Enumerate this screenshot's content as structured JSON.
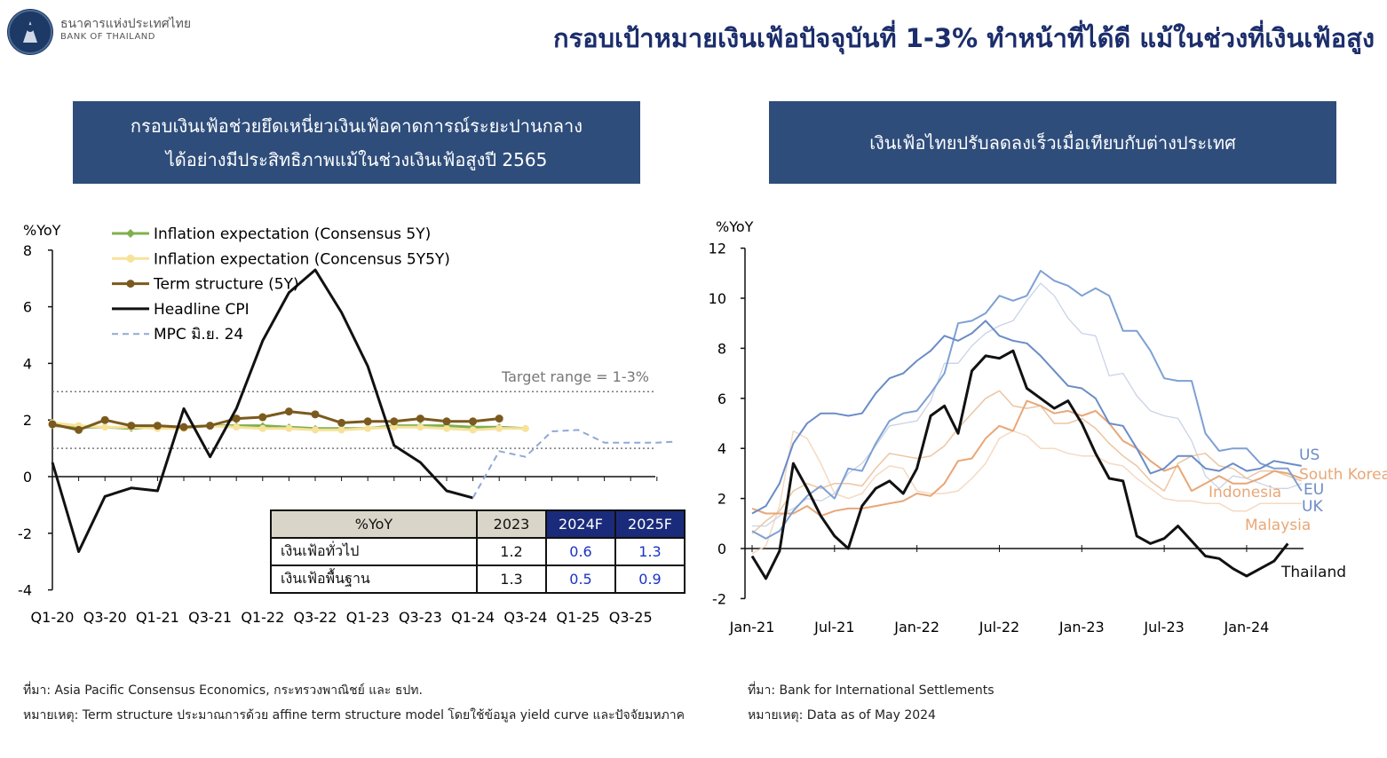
{
  "header": {
    "logo_thai": "ธนาคารแห่งประเทศไทย",
    "logo_en": "BANK OF THAILAND",
    "title": "กรอบเป้าหมายเงินเฟ้อปัจจุบันที่ 1-3% ทำหน้าที่ได้ดี แม้ในช่วงที่เงินเฟ้อสูง"
  },
  "left_panel": {
    "banner_line1": "กรอบเงินเฟ้อช่วยยึดเหนี่ยวเงินเฟ้อคาดการณ์ระยะปานกลาง",
    "banner_line2": "ได้อย่างมีประสิทธิภาพแม้ในช่วงเงินเฟ้อสูงปี 2565",
    "source": "ที่มา: Asia Pacific Consensus Economics, กระทรวงพาณิชย์ และ ธปท.",
    "remark": "หมายเหตุ: Term structure ประมาณการด้วย affine term structure model โดยใช้ข้อมูล yield curve และปัจจัยมหภาค",
    "table": {
      "header": [
        "%YoY",
        "2023",
        "2024F",
        "2025F"
      ],
      "rows": [
        [
          "เงินเฟ้อทั่วไป",
          "1.2",
          "0.6",
          "1.3"
        ],
        [
          "เงินเฟ้อพื้นฐาน",
          "1.3",
          "0.5",
          "0.9"
        ]
      ]
    }
  },
  "right_panel": {
    "banner": "เงินเฟ้อไทยปรับลดลงเร็วเมื่อเทียบกับต่างประเทศ",
    "source": "ที่มา: Bank for International Settlements",
    "remark": "หมายเหตุ: Data as of May 2024"
  },
  "chart_data": [
    {
      "type": "line",
      "ylabel": "%YoY",
      "ylim": [
        -4,
        8
      ],
      "yticks": [
        -4,
        -2,
        0,
        2,
        4,
        6,
        8
      ],
      "x_tick_labels": [
        "Q1-20",
        "Q3-20",
        "Q1-21",
        "Q3-21",
        "Q1-22",
        "Q3-22",
        "Q1-23",
        "Q3-23",
        "Q1-24",
        "Q3-24",
        "Q1-25",
        "Q3-25"
      ],
      "target_range": [
        1,
        3
      ],
      "target_label": "Target range = 1-3%",
      "legend_position": "top-left",
      "series": [
        {
          "name": "Inflation expectation (Consensus 5Y)",
          "color": "#7fb04f",
          "start": 0,
          "values": [
            1.8,
            1.75,
            1.75,
            1.7,
            1.75,
            1.75,
            1.8,
            1.8,
            1.8,
            1.75,
            1.7,
            1.7,
            1.7,
            1.8,
            1.8,
            1.8,
            1.75,
            1.75,
            1.7
          ]
        },
        {
          "name": "Inflation expectation (Concensus 5Y5Y)",
          "color": "#f7e29a",
          "start": 0,
          "values": [
            1.9,
            1.8,
            1.75,
            1.75,
            1.7,
            1.7,
            1.8,
            1.75,
            1.7,
            1.7,
            1.65,
            1.65,
            1.7,
            1.75,
            1.75,
            1.7,
            1.65,
            1.7,
            1.7
          ]
        },
        {
          "name": "Term structure (5Y)",
          "color": "#7a5a1e",
          "start": 0,
          "values": [
            1.85,
            1.65,
            2.0,
            1.8,
            1.8,
            1.75,
            1.8,
            2.05,
            2.1,
            2.3,
            2.2,
            1.9,
            1.95,
            1.95,
            2.05,
            1.95,
            1.95,
            2.05
          ]
        },
        {
          "name": "Headline CPI",
          "color": "#111111",
          "start": 0,
          "values": [
            0.5,
            -2.65,
            -0.7,
            -0.4,
            -0.5,
            2.4,
            0.7,
            2.4,
            4.8,
            6.5,
            7.3,
            5.8,
            3.9,
            1.1,
            0.5,
            -0.5,
            -0.75
          ]
        },
        {
          "name": "MPC มิ.ย. 24",
          "color": "#8fa9d6",
          "dashed": true,
          "start": 16,
          "values": [
            -0.75,
            0.9,
            0.7,
            1.6,
            1.65,
            1.2,
            1.2,
            1.2,
            1.25
          ]
        }
      ]
    },
    {
      "type": "line",
      "ylabel": "%YoY",
      "ylim": [
        -2,
        12
      ],
      "yticks": [
        -2,
        0,
        2,
        4,
        6,
        8,
        10,
        12
      ],
      "x_tick_labels": [
        "Jan-21",
        "Jul-21",
        "Jan-22",
        "Jul-22",
        "Jan-23",
        "Jul-23",
        "Jan-24"
      ],
      "months": 41,
      "series": [
        {
          "name": "US",
          "color": "#6a8cc7",
          "width": 2,
          "values": [
            1.4,
            1.7,
            2.6,
            4.2,
            5.0,
            5.4,
            5.4,
            5.3,
            5.4,
            6.2,
            6.8,
            7.0,
            7.5,
            7.9,
            8.5,
            8.3,
            8.6,
            9.1,
            8.5,
            8.3,
            8.2,
            7.7,
            7.1,
            6.5,
            6.4,
            6.0,
            5.0,
            4.9,
            4.0,
            3.0,
            3.2,
            3.7,
            3.7,
            3.2,
            3.1,
            3.4,
            3.1,
            3.2,
            3.5,
            3.4,
            3.3
          ]
        },
        {
          "name": "EU",
          "color": "#c9d3e6",
          "width": 1.3,
          "values": [
            0.9,
            0.9,
            1.3,
            1.6,
            2.0,
            1.9,
            2.2,
            3.0,
            3.4,
            4.1,
            4.9,
            5.0,
            5.1,
            5.9,
            7.4,
            7.4,
            8.1,
            8.6,
            8.9,
            9.1,
            9.9,
            10.6,
            10.1,
            9.2,
            8.6,
            8.5,
            6.9,
            7.0,
            6.1,
            5.5,
            5.3,
            5.2,
            4.3,
            2.9,
            2.4,
            2.9,
            2.8,
            2.6,
            2.4,
            2.4,
            2.6
          ]
        },
        {
          "name": "UK",
          "color": "#7ea0d3",
          "width": 2,
          "values": [
            0.7,
            0.4,
            0.7,
            1.5,
            2.1,
            2.5,
            2.0,
            3.2,
            3.1,
            4.2,
            5.1,
            5.4,
            5.5,
            6.2,
            7.0,
            9.0,
            9.1,
            9.4,
            10.1,
            9.9,
            10.1,
            11.1,
            10.7,
            10.5,
            10.1,
            10.4,
            10.1,
            8.7,
            8.7,
            7.9,
            6.8,
            6.7,
            6.7,
            4.6,
            3.9,
            4.0,
            4.0,
            3.4,
            3.2,
            3.2,
            2.3
          ]
        },
        {
          "name": "South Korea",
          "color": "#ecc5a3",
          "width": 1.5,
          "values": [
            0.6,
            1.1,
            1.5,
            2.3,
            2.6,
            2.4,
            2.6,
            2.6,
            2.5,
            3.2,
            3.8,
            3.7,
            3.6,
            3.7,
            4.1,
            4.8,
            5.4,
            6.0,
            6.3,
            5.7,
            5.6,
            5.7,
            5.0,
            5.0,
            5.2,
            4.8,
            4.2,
            3.7,
            3.3,
            2.7,
            2.3,
            3.4,
            3.7,
            3.8,
            3.3,
            3.2,
            2.8,
            3.1,
            3.1,
            2.9,
            2.7
          ]
        },
        {
          "name": "Indonesia",
          "color": "#e8a777",
          "width": 2,
          "values": [
            1.6,
            1.4,
            1.4,
            1.4,
            1.7,
            1.3,
            1.5,
            1.6,
            1.6,
            1.7,
            1.8,
            1.9,
            2.2,
            2.1,
            2.6,
            3.5,
            3.6,
            4.4,
            4.9,
            4.7,
            5.9,
            5.7,
            5.4,
            5.5,
            5.3,
            5.5,
            5.0,
            4.3,
            4.0,
            3.5,
            3.1,
            3.3,
            2.3,
            2.6,
            2.9,
            2.6,
            2.6,
            2.8,
            3.1,
            3.0,
            2.8
          ]
        },
        {
          "name": "Malaysia",
          "color": "#f5d9c2",
          "width": 1.5,
          "values": [
            -0.2,
            0.1,
            1.7,
            4.7,
            4.4,
            3.4,
            2.2,
            2.0,
            2.2,
            2.9,
            3.3,
            3.2,
            2.3,
            2.2,
            2.2,
            2.3,
            2.8,
            3.4,
            4.4,
            4.7,
            4.5,
            4.0,
            4.0,
            3.8,
            3.7,
            3.7,
            3.4,
            3.3,
            2.8,
            2.4,
            2.0,
            1.9,
            1.9,
            1.8,
            1.8,
            1.5,
            1.5,
            1.8,
            1.8,
            1.8,
            1.8
          ]
        },
        {
          "name": "Thailand",
          "color": "#111111",
          "width": 3,
          "values": [
            -0.3,
            -1.2,
            -0.1,
            3.4,
            2.4,
            1.3,
            0.5,
            0.0,
            1.7,
            2.4,
            2.7,
            2.2,
            3.2,
            5.3,
            5.7,
            4.6,
            7.1,
            7.7,
            7.6,
            7.9,
            6.4,
            6.0,
            5.6,
            5.9,
            5.0,
            3.8,
            2.8,
            2.7,
            0.5,
            0.2,
            0.4,
            0.9,
            0.3,
            -0.3,
            -0.4,
            -0.8,
            -1.1,
            -0.8,
            -0.5,
            0.2
          ]
        }
      ]
    }
  ]
}
